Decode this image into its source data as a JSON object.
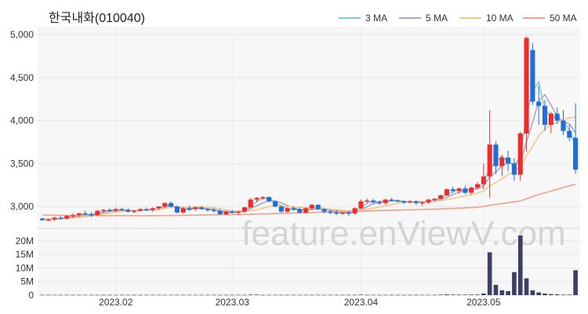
{
  "chart_data": [
    {
      "type": "candlestick",
      "title": "한국내화(010040)",
      "y_ticks": [
        "5,000",
        "4,500",
        "4,000",
        "3,500",
        "3,000"
      ],
      "ylim": [
        2800,
        5000
      ],
      "x_ticks": [
        {
          "label": "2023.02",
          "index": 12
        },
        {
          "label": "2023.03",
          "index": 31
        },
        {
          "label": "2023.04",
          "index": 52
        },
        {
          "label": "2023.05",
          "index": 72
        }
      ],
      "legend_position": "top-right",
      "legend": [
        {
          "name": "3 MA",
          "color": "#7fcfd2"
        },
        {
          "name": "5 MA",
          "color": "#b4a2c8"
        },
        {
          "name": "10 MA",
          "color": "#f2c98a"
        },
        {
          "name": "50 MA",
          "color": "#f0a08c"
        }
      ],
      "up_color": "#ef2b2b",
      "down_color": "#1f6fd6",
      "watermark": "feature.enViewV.com",
      "ohlc": [
        [
          2860,
          2870,
          2840,
          2840
        ],
        [
          2840,
          2860,
          2830,
          2850
        ],
        [
          2850,
          2880,
          2830,
          2870
        ],
        [
          2870,
          2890,
          2850,
          2860
        ],
        [
          2860,
          2900,
          2850,
          2890
        ],
        [
          2890,
          2920,
          2870,
          2900
        ],
        [
          2900,
          2930,
          2880,
          2920
        ],
        [
          2920,
          2950,
          2900,
          2910
        ],
        [
          2910,
          2940,
          2880,
          2900
        ],
        [
          2900,
          2960,
          2890,
          2950
        ],
        [
          2950,
          2970,
          2930,
          2960
        ],
        [
          2960,
          2980,
          2940,
          2950
        ],
        [
          2950,
          2990,
          2940,
          2970
        ],
        [
          2970,
          2990,
          2950,
          2960
        ],
        [
          2960,
          2980,
          2930,
          2940
        ],
        [
          2940,
          2960,
          2920,
          2950
        ],
        [
          2950,
          2980,
          2940,
          2970
        ],
        [
          2970,
          2990,
          2950,
          2960
        ],
        [
          2960,
          2990,
          2940,
          2980
        ],
        [
          2980,
          3000,
          2960,
          3000
        ],
        [
          3000,
          3050,
          2980,
          3040
        ],
        [
          3040,
          3060,
          2990,
          3000
        ],
        [
          3000,
          3010,
          2920,
          2930
        ],
        [
          2930,
          2990,
          2920,
          2980
        ],
        [
          2980,
          3010,
          2950,
          2970
        ],
        [
          2970,
          3000,
          2950,
          2990
        ],
        [
          2990,
          3010,
          2960,
          2970
        ],
        [
          2970,
          2980,
          2940,
          2960
        ],
        [
          2960,
          2990,
          2930,
          2950
        ],
        [
          2950,
          2970,
          2900,
          2910
        ],
        [
          2910,
          2950,
          2900,
          2940
        ],
        [
          2940,
          2960,
          2920,
          2930
        ],
        [
          2930,
          2950,
          2900,
          2940
        ],
        [
          2940,
          3000,
          2930,
          2990
        ],
        [
          2990,
          3100,
          2980,
          3080
        ],
        [
          3080,
          3110,
          3050,
          3100
        ],
        [
          3100,
          3120,
          3080,
          3110
        ],
        [
          3110,
          3120,
          3050,
          3060
        ],
        [
          3060,
          3070,
          2990,
          3000
        ],
        [
          3000,
          3020,
          2930,
          2940
        ],
        [
          2940,
          2990,
          2930,
          2980
        ],
        [
          2980,
          3000,
          2950,
          2970
        ],
        [
          2970,
          2990,
          2920,
          2930
        ],
        [
          2930,
          2990,
          2920,
          2980
        ],
        [
          2980,
          3030,
          2960,
          3020
        ],
        [
          3020,
          3030,
          2960,
          2970
        ],
        [
          2970,
          2980,
          2920,
          2940
        ],
        [
          2940,
          2960,
          2910,
          2930
        ],
        [
          2930,
          2960,
          2900,
          2920
        ],
        [
          2920,
          2940,
          2900,
          2930
        ],
        [
          2930,
          2950,
          2890,
          2920
        ],
        [
          2920,
          2990,
          2900,
          2980
        ],
        [
          2980,
          3080,
          2970,
          3060
        ],
        [
          3060,
          3090,
          3040,
          3070
        ],
        [
          3070,
          3090,
          3030,
          3050
        ],
        [
          3050,
          3070,
          3020,
          3040
        ],
        [
          3040,
          3090,
          3020,
          3080
        ],
        [
          3080,
          3100,
          3060,
          3070
        ],
        [
          3070,
          3080,
          3050,
          3060
        ],
        [
          3060,
          3070,
          3030,
          3050
        ],
        [
          3050,
          3080,
          3040,
          3060
        ],
        [
          3060,
          3070,
          3020,
          3040
        ],
        [
          3040,
          3060,
          3010,
          3050
        ],
        [
          3050,
          3090,
          3030,
          3080
        ],
        [
          3080,
          3100,
          3060,
          3090
        ],
        [
          3090,
          3140,
          3080,
          3130
        ],
        [
          3130,
          3210,
          3120,
          3200
        ],
        [
          3200,
          3230,
          3160,
          3180
        ],
        [
          3180,
          3220,
          3150,
          3210
        ],
        [
          3210,
          3240,
          3140,
          3160
        ],
        [
          3160,
          3230,
          3140,
          3220
        ],
        [
          3220,
          3280,
          3200,
          3260
        ],
        [
          3260,
          3500,
          3200,
          3350
        ],
        [
          3350,
          4120,
          3100,
          3720
        ],
        [
          3720,
          3760,
          3380,
          3470
        ],
        [
          3470,
          3600,
          3350,
          3570
        ],
        [
          3570,
          3650,
          3410,
          3500
        ],
        [
          3500,
          3560,
          3300,
          3370
        ],
        [
          3370,
          3870,
          3300,
          3850
        ],
        [
          3850,
          4980,
          3640,
          4960
        ],
        [
          4820,
          4900,
          4180,
          4220
        ],
        [
          4220,
          4400,
          3950,
          4170
        ],
        [
          4170,
          4240,
          3880,
          3950
        ],
        [
          3950,
          4100,
          3850,
          4080
        ],
        [
          4080,
          4150,
          3960,
          4000
        ],
        [
          4000,
          4120,
          3830,
          3880
        ],
        [
          3880,
          3950,
          3760,
          3800
        ],
        [
          3800,
          4200,
          3380,
          3430
        ]
      ],
      "moving_averages": {
        "3 MA": [
          2855,
          2852,
          2853,
          2860,
          2873,
          2883,
          2903,
          2910,
          2910,
          2920,
          2937,
          2953,
          2960,
          2960,
          2957,
          2950,
          2953,
          2960,
          2970,
          2980,
          3013,
          3013,
          2990,
          2970,
          2960,
          2980,
          2977,
          2973,
          2960,
          2940,
          2933,
          2927,
          2937,
          2953,
          3003,
          3057,
          3097,
          3090,
          3057,
          3000,
          2973,
          2963,
          2960,
          2960,
          2977,
          2990,
          2977,
          2947,
          2930,
          2927,
          2923,
          2943,
          2987,
          3037,
          3060,
          3053,
          3057,
          3063,
          3070,
          3060,
          3052,
          3050,
          3048,
          3057,
          3073,
          3100,
          3140,
          3170,
          3197,
          3183,
          3197,
          3213,
          3277,
          3443,
          3513,
          3587,
          3513,
          3480,
          3573,
          4063,
          4343,
          4450,
          4113,
          4067,
          4010,
          3987,
          3893,
          3703
        ],
        "5 MA": [
          2855,
          2854,
          2853,
          2858,
          2866,
          2876,
          2890,
          2900,
          2906,
          2916,
          2928,
          2942,
          2950,
          2958,
          2956,
          2954,
          2953,
          2957,
          2961,
          2966,
          2994,
          3002,
          2996,
          2990,
          2984,
          2984,
          2978,
          2972,
          2966,
          2950,
          2944,
          2938,
          2936,
          2942,
          2978,
          3010,
          3043,
          3068,
          3064,
          3042,
          3010,
          2982,
          2966,
          2960,
          2964,
          2972,
          2966,
          2960,
          2952,
          2940,
          2928,
          2936,
          2962,
          2998,
          3032,
          3058,
          3064,
          3068,
          3064,
          3060,
          3056,
          3052,
          3050,
          3052,
          3062,
          3080,
          3108,
          3140,
          3166,
          3180,
          3196,
          3206,
          3240,
          3342,
          3402,
          3474,
          3506,
          3498,
          3512,
          3750,
          3978,
          4230,
          4300,
          4180,
          4050,
          3990,
          3960,
          3860
        ],
        "10 MA": [
          2855,
          2854,
          2854,
          2855,
          2860,
          2866,
          2874,
          2882,
          2890,
          2898,
          2910,
          2922,
          2932,
          2942,
          2946,
          2952,
          2958,
          2962,
          2966,
          2968,
          2980,
          2990,
          2988,
          2990,
          2992,
          2996,
          2994,
          2990,
          2984,
          2974,
          2960,
          2952,
          2948,
          2948,
          2952,
          2960,
          2980,
          2998,
          3010,
          3008,
          3000,
          2994,
          2990,
          2986,
          2984,
          2980,
          2976,
          2970,
          2962,
          2956,
          2950,
          2950,
          2956,
          2966,
          2980,
          2994,
          3010,
          3025,
          3036,
          3046,
          3054,
          3058,
          3058,
          3058,
          3060,
          3068,
          3082,
          3096,
          3110,
          3122,
          3138,
          3154,
          3182,
          3240,
          3280,
          3320,
          3370,
          3410,
          3460,
          3590,
          3700,
          3820,
          3900,
          3950,
          3980,
          4010,
          4030,
          4040
        ],
        "50 MA": [
          2900,
          2900,
          2899,
          2898,
          2897,
          2896,
          2895,
          2895,
          2895,
          2895,
          2894,
          2894,
          2894,
          2894,
          2894,
          2894,
          2893,
          2893,
          2893,
          2894,
          2895,
          2896,
          2897,
          2898,
          2899,
          2900,
          2901,
          2902,
          2903,
          2904,
          2905,
          2906,
          2907,
          2908,
          2910,
          2912,
          2914,
          2916,
          2918,
          2920,
          2922,
          2924,
          2926,
          2928,
          2930,
          2932,
          2934,
          2936,
          2938,
          2940,
          2942,
          2944,
          2946,
          2948,
          2950,
          2952,
          2954,
          2956,
          2958,
          2960,
          2962,
          2964,
          2966,
          2968,
          2970,
          2972,
          2975,
          2978,
          2981,
          2984,
          2988,
          2992,
          3000,
          3015,
          3025,
          3035,
          3045,
          3055,
          3065,
          3090,
          3115,
          3140,
          3160,
          3180,
          3200,
          3220,
          3240,
          3260
        ]
      }
    },
    {
      "type": "bar",
      "y_ticks": [
        "20M",
        "15M",
        "10M",
        "5M",
        "0"
      ],
      "ylim": [
        0,
        22
      ],
      "unit": "M",
      "bar_color": "#3c3f66",
      "volume": [
        0.1,
        0.1,
        0.1,
        0.1,
        0.1,
        0.1,
        0.1,
        0.1,
        0.1,
        0.1,
        0.1,
        0.1,
        0.1,
        0.1,
        0.1,
        0.1,
        0.1,
        0.1,
        0.1,
        0.1,
        0.1,
        0.1,
        0.1,
        0.1,
        0.1,
        0.1,
        0.1,
        0.1,
        0.1,
        0.1,
        0.1,
        0.1,
        0.1,
        0.1,
        0.2,
        0.2,
        0.1,
        0.1,
        0.1,
        0.1,
        0.1,
        0.1,
        0.1,
        0.1,
        0.1,
        0.1,
        0.1,
        0.1,
        0.1,
        0.1,
        0.1,
        0.1,
        0.2,
        0.1,
        0.1,
        0.1,
        0.1,
        0.1,
        0.1,
        0.1,
        0.1,
        0.1,
        0.1,
        0.1,
        0.1,
        0.2,
        0.3,
        0.2,
        0.2,
        0.2,
        0.2,
        0.2,
        0.6,
        15.8,
        3.8,
        1.8,
        1.5,
        8.5,
        22.0,
        6.2,
        1.8,
        1.0,
        0.6,
        0.4,
        0.3,
        0.2,
        0.2,
        9.2
      ]
    }
  ]
}
